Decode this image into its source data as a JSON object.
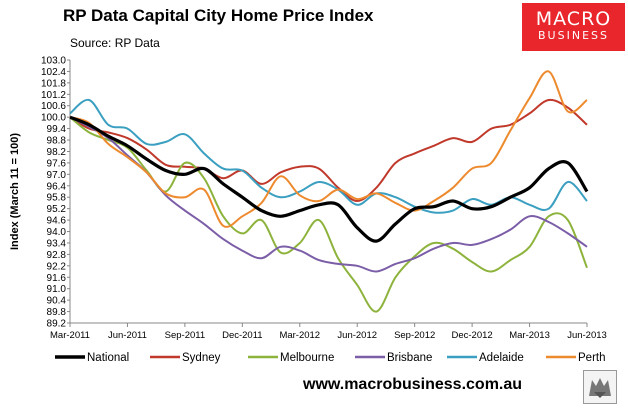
{
  "header": {
    "title": "RP Data Capital City Home Price Index",
    "subtitle": "Source: RP Data"
  },
  "logo": {
    "line1": "MACRO",
    "line2": "BUSINESS"
  },
  "footer": {
    "website": "www.macrobusiness.com.au"
  },
  "colors": {
    "National": "#000000",
    "Sydney": "#c0392b",
    "Melbourne": "#8db33c",
    "Brisbane": "#7b5ea7",
    "Adelaide": "#3a9fc0",
    "Perth": "#ee8a2e",
    "logo_bg": "#e8262b"
  },
  "chart_data": {
    "type": "line",
    "title": "RP Data Capital City Home Price Index",
    "ylabel": "Index (March 11 = 100)",
    "xlabel": "",
    "ylim": [
      89.2,
      103.0
    ],
    "yticks": [
      "89.2",
      "89.8",
      "90.4",
      "91.0",
      "91.6",
      "92.2",
      "92.8",
      "93.4",
      "94.0",
      "94.6",
      "95.2",
      "95.8",
      "96.4",
      "97.0",
      "97.6",
      "98.2",
      "98.8",
      "99.4",
      "100.0",
      "100.6",
      "101.2",
      "101.8",
      "102.4",
      "103.0"
    ],
    "xticks": [
      "Mar-2011",
      "Jun-2011",
      "Sep-2011",
      "Dec-2011",
      "Mar-2012",
      "Jun-2012",
      "Sep-2012",
      "Dec-2012",
      "Mar-2013",
      "Jun-2013"
    ],
    "x": [
      "Mar-2011",
      "Apr-2011",
      "May-2011",
      "Jun-2011",
      "Jul-2011",
      "Aug-2011",
      "Sep-2011",
      "Oct-2011",
      "Nov-2011",
      "Dec-2011",
      "Jan-2012",
      "Feb-2012",
      "Mar-2012",
      "Apr-2012",
      "May-2012",
      "Jun-2012",
      "Jul-2012",
      "Aug-2012",
      "Sep-2012",
      "Oct-2012",
      "Nov-2012",
      "Dec-2012",
      "Jan-2013",
      "Feb-2013",
      "Mar-2013",
      "Apr-2013",
      "May-2013",
      "Jun-2013"
    ],
    "grid": false,
    "legend": "bottom",
    "series": [
      {
        "name": "National",
        "values": [
          100.0,
          99.6,
          99.0,
          98.5,
          97.8,
          97.2,
          97.0,
          97.3,
          96.5,
          95.8,
          95.1,
          94.8,
          95.1,
          95.4,
          95.4,
          94.2,
          93.5,
          94.4,
          95.2,
          95.3,
          95.6,
          95.2,
          95.3,
          95.8,
          96.3,
          97.3,
          97.6,
          96.1
        ]
      },
      {
        "name": "Sydney",
        "values": [
          100.0,
          99.4,
          99.2,
          98.9,
          98.3,
          97.5,
          97.4,
          97.3,
          96.8,
          97.2,
          96.5,
          97.1,
          97.4,
          97.3,
          96.3,
          95.6,
          96.3,
          97.6,
          98.1,
          98.5,
          98.9,
          98.7,
          99.4,
          99.6,
          100.2,
          100.9,
          100.5,
          99.6
        ]
      },
      {
        "name": "Melbourne",
        "values": [
          100.0,
          99.2,
          98.8,
          98.4,
          97.2,
          96.1,
          97.6,
          96.8,
          94.8,
          93.9,
          94.6,
          92.9,
          93.4,
          94.6,
          92.6,
          91.2,
          89.8,
          91.6,
          92.7,
          93.4,
          93.1,
          92.4,
          91.9,
          92.5,
          93.2,
          94.8,
          94.6,
          92.1
        ]
      },
      {
        "name": "Brisbane",
        "values": [
          100.0,
          99.5,
          98.9,
          98.0,
          97.1,
          95.9,
          95.1,
          94.4,
          93.6,
          93.0,
          92.6,
          93.2,
          93.0,
          92.5,
          92.3,
          92.2,
          91.9,
          92.3,
          92.6,
          93.1,
          93.4,
          93.3,
          93.6,
          94.1,
          94.8,
          94.5,
          93.9,
          93.2
        ]
      },
      {
        "name": "Adelaide",
        "values": [
          100.2,
          100.9,
          99.6,
          99.4,
          98.6,
          98.7,
          99.1,
          98.1,
          97.3,
          97.2,
          96.3,
          95.8,
          96.1,
          96.6,
          96.2,
          95.4,
          96.0,
          95.8,
          95.3,
          95.0,
          95.1,
          95.7,
          95.4,
          95.8,
          95.4,
          95.2,
          96.6,
          95.6
        ]
      },
      {
        "name": "Perth",
        "values": [
          100.0,
          99.7,
          98.6,
          97.9,
          97.1,
          96.0,
          95.8,
          96.2,
          94.3,
          94.8,
          95.5,
          96.9,
          95.9,
          95.6,
          96.2,
          95.7,
          96.0,
          95.5,
          95.1,
          95.6,
          96.3,
          97.3,
          97.6,
          99.3,
          101.0,
          102.4,
          100.3,
          100.9
        ]
      }
    ]
  }
}
